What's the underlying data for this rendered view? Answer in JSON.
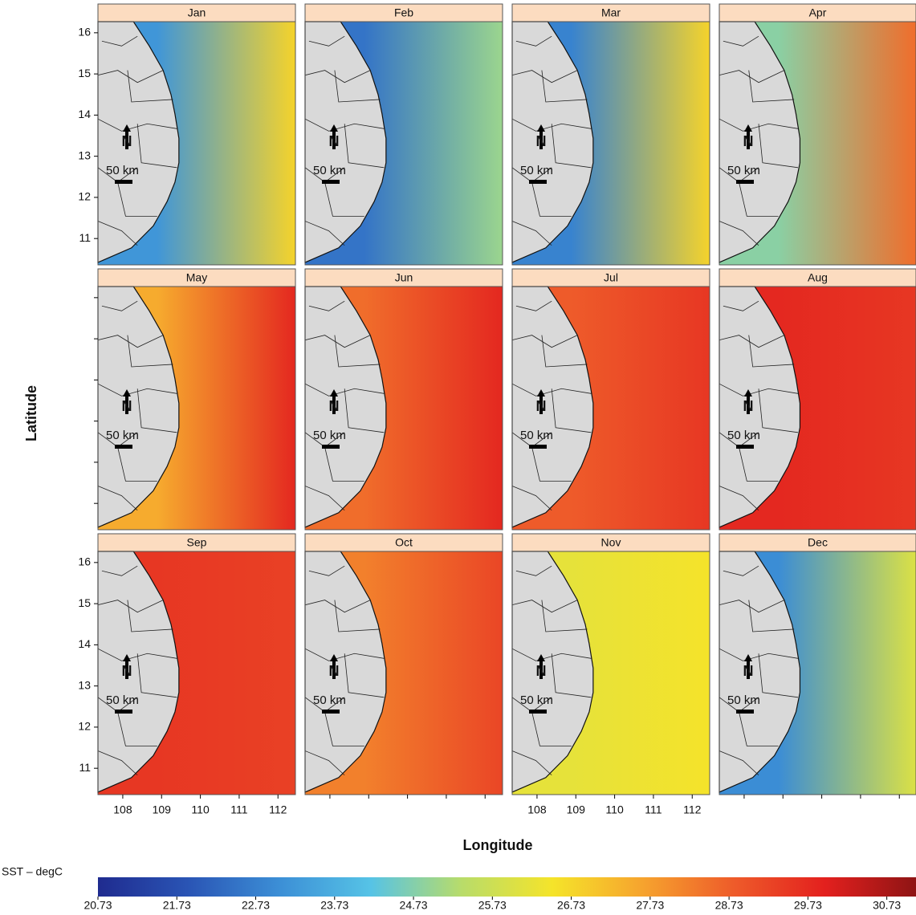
{
  "panels": [
    {
      "month": "Jan",
      "sst_coast": 23.2,
      "sst_offshore": 26.8
    },
    {
      "month": "Feb",
      "sst_coast": 22.5,
      "sst_offshore": 25.0
    },
    {
      "month": "Mar",
      "sst_coast": 22.8,
      "sst_offshore": 26.8
    },
    {
      "month": "Apr",
      "sst_coast": 24.8,
      "sst_offshore": 28.5
    },
    {
      "month": "May",
      "sst_coast": 27.5,
      "sst_offshore": 29.8
    },
    {
      "month": "Jun",
      "sst_coast": 28.5,
      "sst_offshore": 29.8
    },
    {
      "month": "Jul",
      "sst_coast": 28.8,
      "sst_offshore": 29.5
    },
    {
      "month": "Aug",
      "sst_coast": 29.8,
      "sst_offshore": 29.5
    },
    {
      "month": "Sep",
      "sst_coast": 29.5,
      "sst_offshore": 29.3
    },
    {
      "month": "Oct",
      "sst_coast": 28.2,
      "sst_offshore": 29.2
    },
    {
      "month": "Nov",
      "sst_coast": 26.2,
      "sst_offshore": 26.5
    },
    {
      "month": "Dec",
      "sst_coast": 23.0,
      "sst_offshore": 26.0
    }
  ],
  "xlim": [
    107.36,
    112.45
  ],
  "xticks": [
    108,
    109,
    110,
    111,
    112
  ],
  "ylim": [
    10.36,
    16.27
  ],
  "yticks": [
    11,
    12,
    13,
    14,
    15,
    16
  ],
  "x_title": "Longitude",
  "y_title": "Latitude",
  "scale_label": "50 km",
  "north_label": "N",
  "colorbar": {
    "title": "SST – degC",
    "lim": [
      20.73,
      31.1
    ],
    "ticks": [
      20.73,
      21.73,
      22.73,
      23.73,
      24.73,
      25.73,
      26.73,
      27.73,
      28.73,
      29.73,
      30.73
    ],
    "colors": [
      "#1f2b8f",
      "#2a55b5",
      "#3c8fd6",
      "#56c3e6",
      "#b8dc6a",
      "#f5e42a",
      "#f6a32e",
      "#ee5b2a",
      "#e3201e",
      "#8e1414"
    ]
  }
}
